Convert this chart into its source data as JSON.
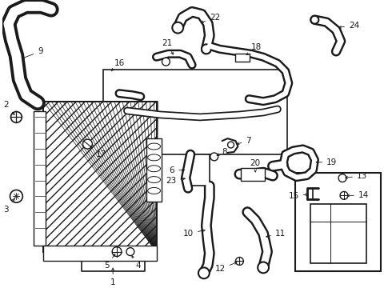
{
  "background_color": "#ffffff",
  "line_color": "#1a1a1a",
  "label_color": "#000000",
  "fig_width": 4.9,
  "fig_height": 3.6,
  "dpi": 100,
  "label_fontsize": 7.5,
  "arrow_lw": 0.6
}
